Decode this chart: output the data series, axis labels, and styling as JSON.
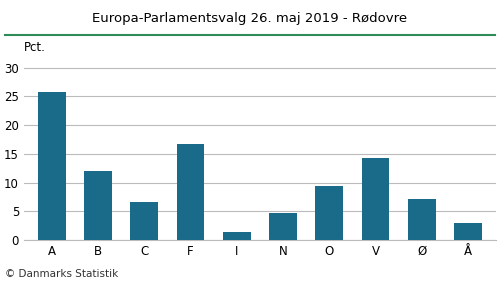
{
  "title": "Europa-Parlamentsvalg 26. maj 2019 - Rødovre",
  "categories": [
    "A",
    "B",
    "C",
    "F",
    "I",
    "N",
    "O",
    "V",
    "Ø",
    "Å"
  ],
  "values": [
    25.7,
    12.0,
    6.6,
    16.8,
    1.4,
    4.7,
    9.5,
    14.2,
    7.1,
    3.0
  ],
  "bar_color": "#1a6b8a",
  "ylim": [
    0,
    32
  ],
  "yticks": [
    0,
    5,
    10,
    15,
    20,
    25,
    30
  ],
  "background_color": "#ffffff",
  "title_color": "#000000",
  "footer": "© Danmarks Statistik",
  "title_line_color": "#2e8b57",
  "grid_color": "#bbbbbb",
  "pct_label": "Pct."
}
